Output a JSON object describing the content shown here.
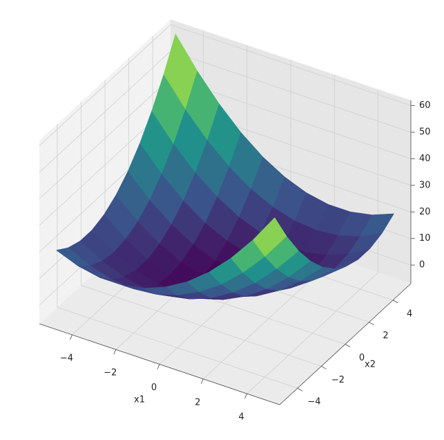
{
  "chart_data": {
    "type": "surface",
    "colormap": "viridis",
    "x": [
      -5,
      -4,
      -3,
      -2,
      -1,
      0,
      1,
      2,
      3,
      4,
      5
    ],
    "y": [
      -5,
      -4,
      -3,
      -2,
      -1,
      0,
      1,
      2,
      3,
      4,
      5
    ],
    "z": [
      [
        20,
        16.8,
        15.2,
        15.2,
        16.8,
        20,
        24.8,
        31.2,
        39.2,
        48.8,
        60
      ],
      [
        16.8,
        12.8,
        10.4,
        9.6,
        10.4,
        12.8,
        16.8,
        22.4,
        29.6,
        38.4,
        48.8
      ],
      [
        15.2,
        10.4,
        7.2,
        5.6,
        5.6,
        7.2,
        10.4,
        15.2,
        21.6,
        29.6,
        39.2
      ],
      [
        15.2,
        9.6,
        5.6,
        3.2,
        2.4,
        3.2,
        5.6,
        9.6,
        15.2,
        22.4,
        31.2
      ],
      [
        16.8,
        10.4,
        5.6,
        2.4,
        0.8,
        0.8,
        2.4,
        5.6,
        10.4,
        16.8,
        24.8
      ],
      [
        20,
        12.8,
        7.2,
        3.2,
        0.8,
        0,
        0.8,
        3.2,
        7.2,
        12.8,
        20
      ],
      [
        24.8,
        16.8,
        10.4,
        5.6,
        2.4,
        0.8,
        0.8,
        2.4,
        5.6,
        10.4,
        16.8
      ],
      [
        31.2,
        22.4,
        15.2,
        9.6,
        5.6,
        3.2,
        2.4,
        3.2,
        5.6,
        9.6,
        15.2
      ],
      [
        39.2,
        29.6,
        21.6,
        15.2,
        10.4,
        7.2,
        5.6,
        5.6,
        7.2,
        10.4,
        15.2
      ],
      [
        48.8,
        38.4,
        29.6,
        22.4,
        16.8,
        12.8,
        10.4,
        9.6,
        10.4,
        12.8,
        16.8
      ],
      [
        60,
        48.8,
        39.2,
        31.2,
        24.8,
        20,
        16.8,
        15.2,
        15.2,
        16.8,
        20
      ]
    ],
    "xlabel": "x1",
    "ylabel": "x2",
    "xlim": [
      -5.5,
      5.5
    ],
    "ylim": [
      -5.5,
      5.5
    ],
    "zlim": [
      -7,
      62
    ],
    "xticks": [
      {
        "value": -4,
        "label": "−4"
      },
      {
        "value": -2,
        "label": "−2"
      },
      0,
      2,
      4
    ],
    "yticks": [
      {
        "value": -4,
        "label": "−4"
      },
      {
        "value": -2,
        "label": "−2"
      },
      0,
      2,
      4
    ],
    "zticks": [
      0,
      10,
      20,
      30,
      40,
      50,
      60
    ],
    "grid": true
  }
}
